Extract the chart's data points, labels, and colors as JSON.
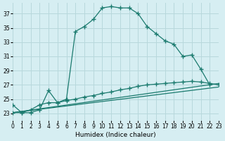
{
  "xlabel": "Humidex (Indice chaleur)",
  "bg_color": "#d6eef2",
  "grid_color": "#b8d8dc",
  "line_color": "#1a7a6e",
  "xlim": [
    0,
    23
  ],
  "ylim": [
    22.0,
    38.5
  ],
  "xticks": [
    0,
    1,
    2,
    3,
    4,
    5,
    6,
    7,
    8,
    9,
    10,
    11,
    12,
    13,
    14,
    15,
    16,
    17,
    18,
    19,
    20,
    21,
    22,
    23
  ],
  "yticks": [
    23,
    25,
    27,
    29,
    31,
    33,
    35,
    37
  ],
  "curve1_x": [
    0,
    1,
    2,
    3,
    4,
    5,
    6,
    7,
    8,
    9,
    10,
    11,
    12,
    13,
    14,
    15,
    16,
    17,
    18,
    19,
    20,
    21,
    22
  ],
  "curve1_y": [
    24.2,
    23.1,
    23.1,
    23.5,
    26.2,
    24.5,
    25.0,
    34.5,
    35.2,
    36.2,
    37.8,
    38.0,
    37.8,
    37.8,
    37.0,
    35.2,
    34.2,
    33.2,
    32.7,
    31.0,
    31.2,
    29.2,
    27.0
  ],
  "curve2_x": [
    0,
    1,
    2,
    3,
    4,
    5,
    6,
    7,
    8,
    9,
    10,
    11,
    12,
    13,
    14,
    15,
    16,
    17,
    18,
    19,
    20,
    21,
    22,
    23
  ],
  "curve2_y": [
    23.1,
    23.1,
    23.5,
    24.2,
    24.5,
    24.5,
    24.8,
    25.0,
    25.3,
    25.5,
    25.8,
    26.0,
    26.3,
    26.5,
    26.8,
    27.0,
    27.1,
    27.2,
    27.3,
    27.4,
    27.5,
    27.4,
    27.2,
    27.0
  ],
  "line3_x": [
    0,
    23
  ],
  "line3_y": [
    23.1,
    27.2
  ],
  "line4_x": [
    0,
    23
  ],
  "line4_y": [
    23.1,
    26.7
  ]
}
